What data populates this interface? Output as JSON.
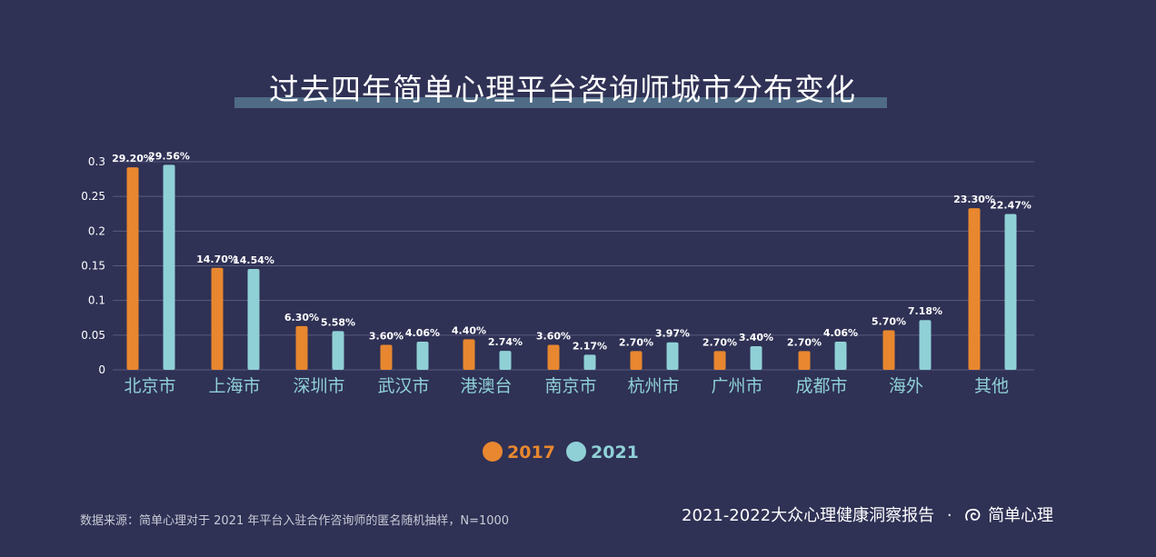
{
  "title": "过去四年简单心理平台咨询师城市分布变化",
  "source": "数据来源：简单心理对于 2021 年平台入驻合作咨询师的匿名随机抽样，N=1000",
  "footer": {
    "report": "2021-2022大众心理健康洞察报告",
    "separator": "·",
    "brand": "简单心理"
  },
  "colors": {
    "background": "#2f3155",
    "series_2017": "#e8872f",
    "series_2021": "#8fd0d6",
    "grid": "#5a5c7e",
    "axis_label": "#8fd0d6",
    "tick": "#ffffff"
  },
  "chart_data": {
    "type": "bar",
    "title": "过去四年简单心理平台咨询师城市分布变化",
    "categories": [
      "北京市",
      "上海市",
      "深圳市",
      "武汉市",
      "港澳台",
      "南京市",
      "杭州市",
      "广州市",
      "成都市",
      "海外",
      "其他"
    ],
    "series": [
      {
        "name": "2017",
        "values": [
          0.292,
          0.147,
          0.063,
          0.036,
          0.044,
          0.036,
          0.027,
          0.027,
          0.027,
          0.057,
          0.233
        ],
        "labels": [
          "29.20%",
          "14.70%",
          "6.30%",
          "3.60%",
          "4.40%",
          "3.60%",
          "2.70%",
          "2.70%",
          "2.70%",
          "5.70%",
          "23.30%"
        ]
      },
      {
        "name": "2021",
        "values": [
          0.2956,
          0.1454,
          0.0558,
          0.0406,
          0.0274,
          0.0217,
          0.0397,
          0.034,
          0.0406,
          0.0718,
          0.2247
        ],
        "labels": [
          "29.56%",
          "14.54%",
          "5.58%",
          "4.06%",
          "2.74%",
          "2.17%",
          "3.97%",
          "3.40%",
          "4.06%",
          "7.18%",
          "22.47%"
        ]
      }
    ],
    "yticks": [
      "0",
      "0.05",
      "0.1",
      "0.15",
      "0.2",
      "0.25",
      "0.3"
    ],
    "ytick_values": [
      0,
      0.05,
      0.1,
      0.15,
      0.2,
      0.25,
      0.3
    ],
    "ylim": [
      0,
      0.3
    ],
    "grid": true,
    "legend": "bottom-center"
  }
}
